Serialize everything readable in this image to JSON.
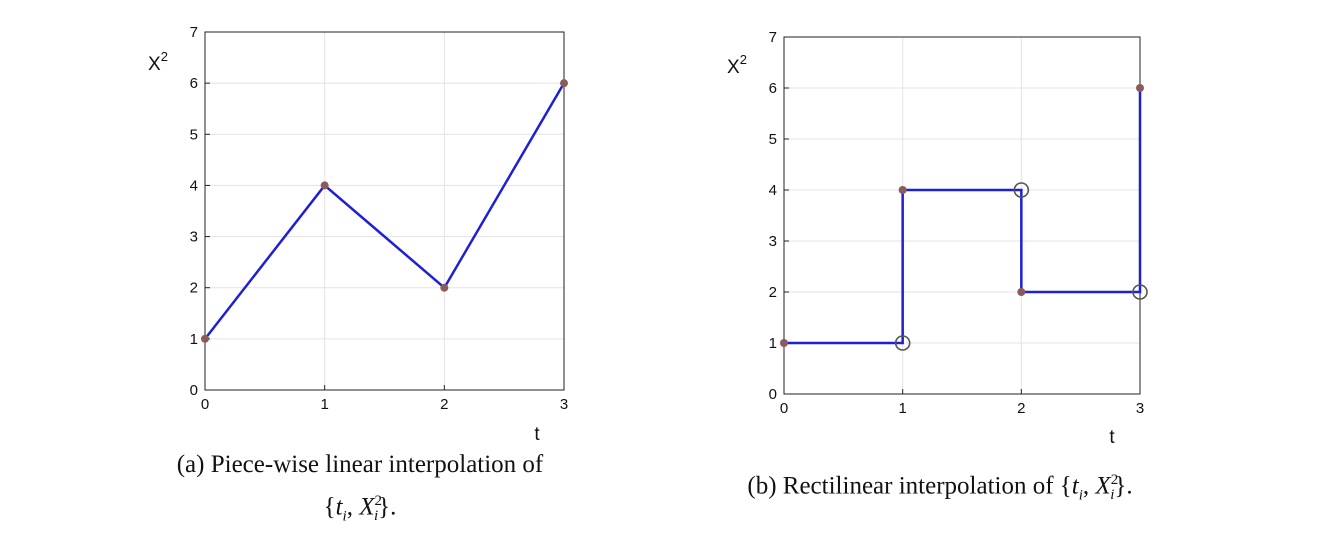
{
  "chart_data": [
    {
      "type": "line",
      "ylabel": "X",
      "ylabel_sup": "2",
      "xlabel": "t",
      "xlim": [
        0,
        3
      ],
      "ylim": [
        0,
        7
      ],
      "xticks": [
        "0",
        "1",
        "2",
        "3"
      ],
      "yticks": [
        "0",
        "1",
        "2",
        "3",
        "4",
        "5",
        "6",
        "7"
      ],
      "grid": true,
      "series": [
        {
          "x": [
            0,
            1,
            2,
            3
          ],
          "y": [
            1,
            4,
            2,
            6
          ],
          "color": "#1f1fd6"
        }
      ],
      "markers": {
        "filled": [
          [
            0,
            1
          ],
          [
            1,
            4
          ],
          [
            2,
            2
          ],
          [
            3,
            6
          ]
        ],
        "open": []
      },
      "caption": {
        "prefix": "(a) Piece-wise linear interpolation of",
        "set_open": "{",
        "t_var": "t",
        "t_sub": "i",
        "comma": ", ",
        "x_var": "X",
        "x_sup": "2",
        "x_sub": "i",
        "set_close": "}."
      }
    },
    {
      "type": "line",
      "ylabel": "X",
      "ylabel_sup": "2",
      "xlabel": "t",
      "xlim": [
        0,
        3
      ],
      "ylim": [
        0,
        7
      ],
      "xticks": [
        "0",
        "1",
        "2",
        "3"
      ],
      "yticks": [
        "0",
        "1",
        "2",
        "3",
        "4",
        "5",
        "6",
        "7"
      ],
      "grid": true,
      "series": [
        {
          "x": [
            0,
            1,
            1,
            2,
            2,
            3,
            3
          ],
          "y": [
            1,
            1,
            4,
            4,
            2,
            2,
            6
          ],
          "color": "#1f1fd6"
        }
      ],
      "markers": {
        "filled": [
          [
            0,
            1
          ],
          [
            1,
            4
          ],
          [
            2,
            2
          ],
          [
            3,
            6
          ]
        ],
        "open": [
          [
            1,
            1
          ],
          [
            2,
            4
          ],
          [
            3,
            2
          ]
        ]
      },
      "caption": {
        "prefix": "(b) Rectilinear interpolation of",
        "set_open": "{",
        "t_var": "t",
        "t_sub": "i",
        "comma": ", ",
        "x_var": "X",
        "x_sup": "2",
        "x_sub": "i",
        "set_close": "}."
      }
    }
  ],
  "colors": {
    "line": "#1f1fd6",
    "marker": "#8b5a5a",
    "grid": "#e3e3e3",
    "axis": "#222222"
  }
}
